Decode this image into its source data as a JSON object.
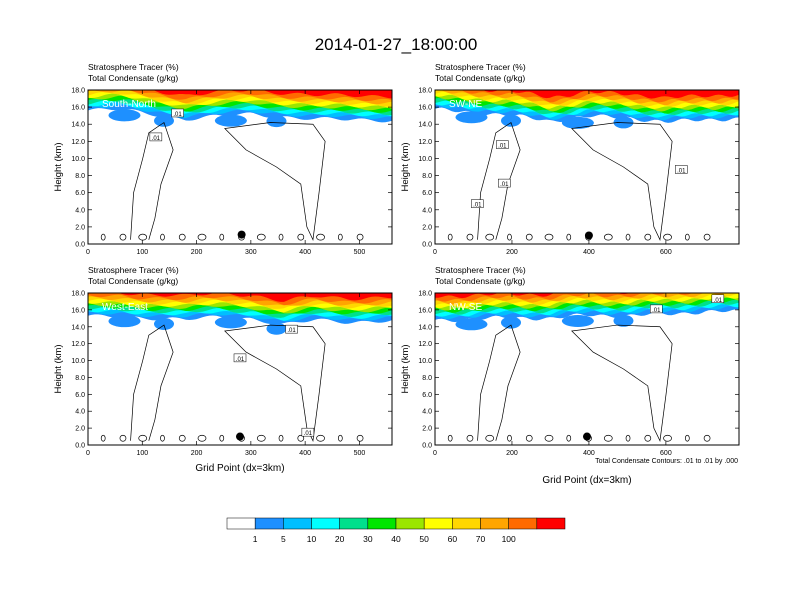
{
  "figure": {
    "title": "2014-01-27_18:00:00",
    "contour_note": "Total Condensate Contours: .01 to .01 by .000"
  },
  "colors": {
    "levels": [
      "#ffffff",
      "#1e90ff",
      "#00bfff",
      "#00ffff",
      "#00e08c",
      "#00e600",
      "#9be600",
      "#ffff00",
      "#ffd700",
      "#ffa500",
      "#ff6a00",
      "#ff0000"
    ],
    "contour": "#000000",
    "marker": "#000000"
  },
  "colorbar": {
    "tick_labels": [
      "1",
      "5",
      "10",
      "20",
      "30",
      "40",
      "50",
      "60",
      "70",
      "100"
    ]
  },
  "chart_data": [
    {
      "type": "heatmap",
      "panel_label": "South-North",
      "subtitle_line1": "Stratosphere Tracer   (%)",
      "subtitle_line2": "Total Condensate   (g/kg)",
      "xlabel": "",
      "ylabel": "Height (km)",
      "xlim": [
        0,
        560
      ],
      "ylim": [
        0,
        18
      ],
      "xticks": [
        "0",
        "100",
        "200",
        "300",
        "400",
        "500"
      ],
      "xtick_values": [
        0,
        100,
        200,
        300,
        400,
        500
      ],
      "yticks": [
        "0.0",
        "2.0",
        "4.0",
        "6.0",
        "8.0",
        "10.0",
        "12.0",
        "14.0",
        "16.0",
        "18.0"
      ],
      "contour_labels": [
        {
          "text": ".01",
          "x": 165,
          "y": 15.2
        },
        {
          "text": ".01",
          "x": 125,
          "y": 12.4
        }
      ],
      "marker": {
        "x": 283,
        "y": 1.1
      },
      "tracer_profile": {
        "x": [
          0,
          60,
          120,
          180,
          240,
          300,
          360,
          420,
          480,
          560
        ],
        "base_height": [
          15.6,
          15.7,
          15.2,
          14.6,
          14.9,
          15.2,
          14.9,
          14.6,
          14.5,
          14.5
        ]
      }
    },
    {
      "type": "heatmap",
      "panel_label": "SW-NE",
      "subtitle_line1": "Stratosphere Tracer   (%)",
      "subtitle_line2": "Total Condensate   (g/kg)",
      "xlabel": "",
      "ylabel": "Height (km)",
      "xlim": [
        0,
        790
      ],
      "ylim": [
        0,
        18
      ],
      "xticks": [
        "0",
        "200",
        "400",
        "600"
      ],
      "xtick_values": [
        0,
        200,
        400,
        600
      ],
      "yticks": [
        "0.0",
        "2.0",
        "4.0",
        "6.0",
        "8.0",
        "10.0",
        "12.0",
        "14.0",
        "16.0",
        "18.0"
      ],
      "contour_labels": [
        {
          "text": ".01",
          "x": 175,
          "y": 11.5
        },
        {
          "text": ".01",
          "x": 180,
          "y": 7.0
        },
        {
          "text": ".01",
          "x": 110,
          "y": 4.6
        },
        {
          "text": ".01",
          "x": 640,
          "y": 8.6
        }
      ],
      "marker": {
        "x": 400,
        "y": 1.0
      },
      "tracer_profile": {
        "x": [
          0,
          100,
          200,
          300,
          400,
          500,
          600,
          700,
          790
        ],
        "base_height": [
          15.7,
          15.4,
          15.0,
          14.4,
          14.9,
          14.8,
          14.2,
          14.6,
          14.6
        ]
      }
    },
    {
      "type": "heatmap",
      "panel_label": "West-East",
      "subtitle_line1": "Stratosphere Tracer   (%)",
      "subtitle_line2": "Total Condensate   (g/kg)",
      "xlabel": "Grid Point (dx=3km)",
      "ylabel": "Height (km)",
      "xlim": [
        0,
        560
      ],
      "ylim": [
        0,
        18
      ],
      "xticks": [
        "0",
        "100",
        "200",
        "300",
        "400",
        "500"
      ],
      "xtick_values": [
        0,
        100,
        200,
        300,
        400,
        500
      ],
      "yticks": [
        "0.0",
        "2.0",
        "4.0",
        "6.0",
        "8.0",
        "10.0",
        "12.0",
        "14.0",
        "16.0",
        "18.0"
      ],
      "contour_labels": [
        {
          "text": ".01",
          "x": 375,
          "y": 13.6
        },
        {
          "text": ".01",
          "x": 280,
          "y": 10.2
        },
        {
          "text": ".01",
          "x": 405,
          "y": 1.4
        }
      ],
      "marker": {
        "x": 280,
        "y": 1.0
      },
      "tracer_profile": {
        "x": [
          0,
          60,
          120,
          180,
          240,
          300,
          360,
          420,
          480,
          560
        ],
        "base_height": [
          15.2,
          15.3,
          15.0,
          14.8,
          15.2,
          15.0,
          14.2,
          14.8,
          14.6,
          14.7
        ]
      }
    },
    {
      "type": "heatmap",
      "panel_label": "NW-SE",
      "subtitle_line1": "Stratosphere Tracer   (%)",
      "subtitle_line2": "Total Condensate   (g/kg)",
      "xlabel": "Grid Point (dx=3km)",
      "ylabel": "Height (km)",
      "xlim": [
        0,
        790
      ],
      "ylim": [
        0,
        18
      ],
      "xticks": [
        "0",
        "200",
        "400",
        "600"
      ],
      "xtick_values": [
        0,
        200,
        400,
        600
      ],
      "yticks": [
        "0.0",
        "2.0",
        "4.0",
        "6.0",
        "8.0",
        "10.0",
        "12.0",
        "14.0",
        "16.0",
        "18.0"
      ],
      "contour_labels": [
        {
          "text": ".01",
          "x": 575,
          "y": 16.0
        },
        {
          "text": ".01",
          "x": 735,
          "y": 17.2
        }
      ],
      "marker": {
        "x": 395,
        "y": 1.0
      },
      "tracer_profile": {
        "x": [
          0,
          100,
          200,
          300,
          400,
          500,
          600,
          700,
          790
        ],
        "base_height": [
          14.8,
          14.9,
          15.1,
          15.0,
          15.4,
          15.3,
          15.5,
          15.8,
          15.8
        ]
      }
    }
  ]
}
